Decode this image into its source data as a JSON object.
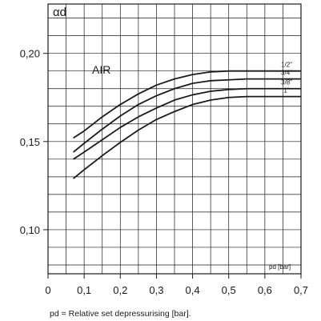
{
  "chart_data": {
    "type": "line",
    "title_symbol": "αd",
    "annotation": "AIR",
    "xlabel": "pd [bar]",
    "caption": "pd = Relative set depressurising [bar].",
    "xlim": [
      0,
      0.7
    ],
    "ylim": [
      0.075,
      0.228
    ],
    "grid": true,
    "x_ticks": [
      "0",
      "0,1",
      "0,2",
      "0,3",
      "0,4",
      "0,5",
      "0,6",
      "0,7"
    ],
    "x_tick_values": [
      0,
      0.1,
      0.2,
      0.3,
      0.4,
      0.5,
      0.6,
      0.7
    ],
    "y_ticks": [
      "0,10",
      "0,15",
      "0,20"
    ],
    "y_tick_values": [
      0.1,
      0.15,
      0.2
    ],
    "series": [
      {
        "name": "1/2\"",
        "x": [
          0.07,
          0.1,
          0.15,
          0.2,
          0.25,
          0.3,
          0.35,
          0.4,
          0.45,
          0.5,
          0.55,
          0.6,
          0.65,
          0.7
        ],
        "values": [
          0.152,
          0.156,
          0.164,
          0.171,
          0.177,
          0.182,
          0.1855,
          0.188,
          0.1895,
          0.19,
          0.19,
          0.19,
          0.19,
          0.19
        ]
      },
      {
        "name": "3/4\"",
        "x": [
          0.07,
          0.1,
          0.15,
          0.2,
          0.25,
          0.3,
          0.35,
          0.4,
          0.45,
          0.5,
          0.55,
          0.6,
          0.65,
          0.7
        ],
        "values": [
          0.144,
          0.149,
          0.157,
          0.1645,
          0.171,
          0.176,
          0.18,
          0.183,
          0.1845,
          0.185,
          0.1855,
          0.1855,
          0.1855,
          0.1855
        ]
      },
      {
        "name": "3/8\"",
        "x": [
          0.07,
          0.1,
          0.15,
          0.2,
          0.25,
          0.3,
          0.35,
          0.4,
          0.45,
          0.5,
          0.55,
          0.6,
          0.65,
          0.7
        ],
        "values": [
          0.14,
          0.144,
          0.151,
          0.158,
          0.164,
          0.169,
          0.1735,
          0.1765,
          0.1785,
          0.1795,
          0.18,
          0.18,
          0.18,
          0.18
        ]
      },
      {
        "name": "1\"",
        "x": [
          0.07,
          0.1,
          0.15,
          0.2,
          0.25,
          0.3,
          0.35,
          0.4,
          0.45,
          0.5,
          0.55,
          0.6,
          0.65,
          0.7
        ],
        "values": [
          0.129,
          0.134,
          0.142,
          0.1495,
          0.1565,
          0.1625,
          0.167,
          0.171,
          0.1735,
          0.175,
          0.1755,
          0.1755,
          0.1755,
          0.1755
        ]
      }
    ]
  }
}
